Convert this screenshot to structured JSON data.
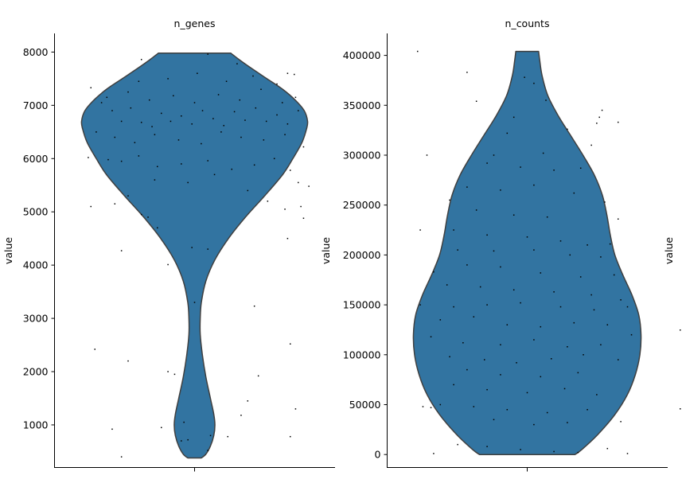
{
  "colors": {
    "violin_fill": "#3274a1",
    "violin_edge": "#3f3f3f",
    "jitter": "#000000",
    "axis": "#000000"
  },
  "chart_data": [
    {
      "type": "violin",
      "title": "n_genes",
      "ylabel": "value",
      "yticks": [
        1000,
        2000,
        3000,
        4000,
        5000,
        6000,
        7000,
        8000
      ],
      "ylim": [
        200,
        8350
      ],
      "grid": false,
      "value_range": [
        380,
        7980
      ],
      "density_profile": [
        {
          "y": 380,
          "w": 0.06
        },
        {
          "y": 450,
          "w": 0.1
        },
        {
          "y": 600,
          "w": 0.14
        },
        {
          "y": 800,
          "w": 0.17
        },
        {
          "y": 1000,
          "w": 0.18
        },
        {
          "y": 1200,
          "w": 0.17
        },
        {
          "y": 1500,
          "w": 0.14
        },
        {
          "y": 1900,
          "w": 0.1
        },
        {
          "y": 2300,
          "w": 0.07
        },
        {
          "y": 2700,
          "w": 0.05
        },
        {
          "y": 3000,
          "w": 0.05
        },
        {
          "y": 3300,
          "w": 0.06
        },
        {
          "y": 3700,
          "w": 0.1
        },
        {
          "y": 4100,
          "w": 0.18
        },
        {
          "y": 4500,
          "w": 0.3
        },
        {
          "y": 4900,
          "w": 0.45
        },
        {
          "y": 5300,
          "w": 0.62
        },
        {
          "y": 5700,
          "w": 0.78
        },
        {
          "y": 6000,
          "w": 0.87
        },
        {
          "y": 6300,
          "w": 0.95
        },
        {
          "y": 6550,
          "w": 0.99
        },
        {
          "y": 6700,
          "w": 1.0
        },
        {
          "y": 6900,
          "w": 0.97
        },
        {
          "y": 7100,
          "w": 0.89
        },
        {
          "y": 7300,
          "w": 0.78
        },
        {
          "y": 7500,
          "w": 0.64
        },
        {
          "y": 7700,
          "w": 0.5
        },
        {
          "y": 7850,
          "w": 0.4
        },
        {
          "y": 7980,
          "w": 0.32
        }
      ],
      "jitter_points": [
        [
          -0.78,
          7330
        ],
        [
          -0.7,
          7050
        ],
        [
          -0.62,
          6900
        ],
        [
          -0.55,
          6700
        ],
        [
          -0.48,
          6950
        ],
        [
          -0.4,
          6680
        ],
        [
          -0.32,
          6600
        ],
        [
          -0.25,
          6850
        ],
        [
          -0.18,
          6700
        ],
        [
          -0.1,
          6800
        ],
        [
          -0.02,
          6650
        ],
        [
          0.06,
          6900
        ],
        [
          0.14,
          6750
        ],
        [
          0.22,
          6620
        ],
        [
          0.3,
          6880
        ],
        [
          0.38,
          6720
        ],
        [
          0.46,
          6950
        ],
        [
          0.54,
          6700
        ],
        [
          0.62,
          6820
        ],
        [
          0.7,
          6650
        ],
        [
          0.78,
          6900
        ],
        [
          -0.74,
          6500
        ],
        [
          -0.6,
          6400
        ],
        [
          -0.45,
          6300
        ],
        [
          -0.3,
          6450
        ],
        [
          -0.12,
          6350
        ],
        [
          0.05,
          6280
        ],
        [
          0.2,
          6500
        ],
        [
          0.35,
          6400
        ],
        [
          0.52,
          6350
        ],
        [
          0.68,
          6450
        ],
        [
          0.82,
          6220
        ],
        [
          -0.66,
          7150
        ],
        [
          -0.5,
          7250
        ],
        [
          -0.34,
          7100
        ],
        [
          -0.16,
          7180
        ],
        [
          0.0,
          7050
        ],
        [
          0.18,
          7200
        ],
        [
          0.34,
          7100
        ],
        [
          0.5,
          7300
        ],
        [
          0.66,
          7050
        ],
        [
          0.76,
          7150
        ],
        [
          -0.42,
          7450
        ],
        [
          -0.2,
          7500
        ],
        [
          0.02,
          7600
        ],
        [
          0.24,
          7450
        ],
        [
          0.44,
          7550
        ],
        [
          0.62,
          7400
        ],
        [
          -0.4,
          7860
        ],
        [
          0.1,
          7960
        ],
        [
          0.32,
          7780
        ],
        [
          0.7,
          7600
        ],
        [
          0.75,
          7580
        ],
        [
          -0.8,
          6020
        ],
        [
          -0.65,
          5980
        ],
        [
          -0.55,
          5950
        ],
        [
          -0.42,
          6050
        ],
        [
          -0.28,
          5850
        ],
        [
          -0.1,
          5900
        ],
        [
          0.1,
          5960
        ],
        [
          0.28,
          5800
        ],
        [
          0.45,
          5880
        ],
        [
          0.6,
          6000
        ],
        [
          0.72,
          5780
        ],
        [
          0.78,
          5550
        ],
        [
          -0.3,
          5600
        ],
        [
          -0.05,
          5550
        ],
        [
          0.15,
          5700
        ],
        [
          0.4,
          5400
        ],
        [
          0.55,
          5200
        ],
        [
          -0.5,
          5300
        ],
        [
          -0.6,
          5150
        ],
        [
          -0.78,
          5100
        ],
        [
          -0.4,
          4950
        ],
        [
          -0.35,
          4900
        ],
        [
          -0.28,
          4700
        ],
        [
          0.68,
          5050
        ],
        [
          0.82,
          4880
        ],
        [
          0.86,
          5480
        ],
        [
          0.8,
          5100
        ],
        [
          0.7,
          4500
        ],
        [
          -0.55,
          4270
        ],
        [
          -0.02,
          4330
        ],
        [
          0.1,
          4300
        ],
        [
          -0.2,
          4010
        ],
        [
          0.45,
          3230
        ],
        [
          0.0,
          3300
        ],
        [
          -0.75,
          2420
        ],
        [
          -0.5,
          2200
        ],
        [
          -0.2,
          2000
        ],
        [
          -0.15,
          1950
        ],
        [
          0.48,
          1920
        ],
        [
          0.72,
          2520
        ],
        [
          0.4,
          1450
        ],
        [
          0.35,
          1180
        ],
        [
          0.76,
          1300
        ],
        [
          -0.62,
          920
        ],
        [
          -0.25,
          950
        ],
        [
          -0.08,
          1050
        ],
        [
          -0.05,
          720
        ],
        [
          -0.1,
          700
        ],
        [
          0.1,
          520
        ],
        [
          0.12,
          800
        ],
        [
          0.25,
          780
        ],
        [
          0.72,
          780
        ],
        [
          -0.55,
          400
        ]
      ]
    },
    {
      "type": "violin",
      "title": "n_counts",
      "ylabel": "value",
      "yticks": [
        0,
        50000,
        100000,
        150000,
        200000,
        250000,
        300000,
        350000,
        400000
      ],
      "ylim": [
        -13000,
        422000
      ],
      "grid": false,
      "value_range": [
        0,
        404000
      ],
      "density_profile": [
        {
          "y": 0,
          "w": 0.42
        },
        {
          "y": 5000,
          "w": 0.48
        },
        {
          "y": 20000,
          "w": 0.62
        },
        {
          "y": 40000,
          "w": 0.77
        },
        {
          "y": 60000,
          "w": 0.88
        },
        {
          "y": 80000,
          "w": 0.95
        },
        {
          "y": 100000,
          "w": 0.99
        },
        {
          "y": 120000,
          "w": 1.0
        },
        {
          "y": 140000,
          "w": 0.98
        },
        {
          "y": 160000,
          "w": 0.92
        },
        {
          "y": 180000,
          "w": 0.84
        },
        {
          "y": 200000,
          "w": 0.77
        },
        {
          "y": 220000,
          "w": 0.73
        },
        {
          "y": 240000,
          "w": 0.7
        },
        {
          "y": 260000,
          "w": 0.66
        },
        {
          "y": 280000,
          "w": 0.59
        },
        {
          "y": 300000,
          "w": 0.49
        },
        {
          "y": 320000,
          "w": 0.38
        },
        {
          "y": 340000,
          "w": 0.27
        },
        {
          "y": 360000,
          "w": 0.18
        },
        {
          "y": 380000,
          "w": 0.13
        },
        {
          "y": 395000,
          "w": 0.11
        },
        {
          "y": 404000,
          "w": 0.1
        }
      ],
      "jitter_points": [
        [
          -0.82,
          404000
        ],
        [
          -0.45,
          383000
        ],
        [
          -0.38,
          354000
        ],
        [
          -0.02,
          378000
        ],
        [
          0.05,
          372000
        ],
        [
          0.14,
          355000
        ],
        [
          0.56,
          345000
        ],
        [
          0.54,
          338000
        ],
        [
          0.68,
          333000
        ],
        [
          0.52,
          332000
        ],
        [
          0.3,
          326000
        ],
        [
          -0.1,
          338000
        ],
        [
          -0.15,
          322000
        ],
        [
          -0.25,
          300000
        ],
        [
          -0.75,
          300000
        ],
        [
          0.12,
          302000
        ],
        [
          0.48,
          310000
        ],
        [
          -0.3,
          292000
        ],
        [
          -0.05,
          288000
        ],
        [
          0.2,
          285000
        ],
        [
          0.4,
          287000
        ],
        [
          -0.45,
          268000
        ],
        [
          -0.2,
          265000
        ],
        [
          0.05,
          270000
        ],
        [
          0.35,
          262000
        ],
        [
          0.58,
          253000
        ],
        [
          -0.58,
          255000
        ],
        [
          -0.38,
          245000
        ],
        [
          -0.1,
          240000
        ],
        [
          0.15,
          238000
        ],
        [
          0.68,
          236000
        ],
        [
          -0.8,
          225000
        ],
        [
          -0.55,
          225000
        ],
        [
          -0.3,
          220000
        ],
        [
          0.0,
          218000
        ],
        [
          0.25,
          214000
        ],
        [
          0.45,
          210000
        ],
        [
          0.62,
          211000
        ],
        [
          -0.52,
          205000
        ],
        [
          -0.25,
          204000
        ],
        [
          0.05,
          205000
        ],
        [
          0.32,
          200000
        ],
        [
          0.55,
          198000
        ],
        [
          -0.7,
          183000
        ],
        [
          -0.45,
          190000
        ],
        [
          -0.2,
          188000
        ],
        [
          0.1,
          182000
        ],
        [
          0.4,
          178000
        ],
        [
          0.65,
          180000
        ],
        [
          -0.6,
          170000
        ],
        [
          -0.35,
          168000
        ],
        [
          -0.1,
          165000
        ],
        [
          0.2,
          163000
        ],
        [
          0.48,
          160000
        ],
        [
          0.7,
          155000
        ],
        [
          -0.8,
          150000
        ],
        [
          -0.55,
          148000
        ],
        [
          -0.3,
          150000
        ],
        [
          -0.05,
          152000
        ],
        [
          0.25,
          148000
        ],
        [
          0.5,
          145000
        ],
        [
          0.75,
          148000
        ],
        [
          -0.65,
          135000
        ],
        [
          -0.4,
          138000
        ],
        [
          -0.15,
          130000
        ],
        [
          0.1,
          128000
        ],
        [
          0.35,
          132000
        ],
        [
          0.6,
          130000
        ],
        [
          0.78,
          120000
        ],
        [
          -0.72,
          118000
        ],
        [
          -0.48,
          112000
        ],
        [
          -0.2,
          110000
        ],
        [
          0.05,
          115000
        ],
        [
          0.3,
          108000
        ],
        [
          0.55,
          110000
        ],
        [
          -0.58,
          98000
        ],
        [
          -0.32,
          95000
        ],
        [
          -0.08,
          92000
        ],
        [
          0.18,
          96000
        ],
        [
          0.42,
          100000
        ],
        [
          0.68,
          95000
        ],
        [
          -0.45,
          85000
        ],
        [
          -0.2,
          80000
        ],
        [
          0.1,
          78000
        ],
        [
          0.38,
          82000
        ],
        [
          -0.55,
          70000
        ],
        [
          -0.3,
          65000
        ],
        [
          0.0,
          62000
        ],
        [
          0.28,
          66000
        ],
        [
          0.52,
          60000
        ],
        [
          -0.65,
          50000
        ],
        [
          -0.4,
          48000
        ],
        [
          -0.15,
          45000
        ],
        [
          0.15,
          42000
        ],
        [
          0.45,
          45000
        ],
        [
          -0.25,
          35000
        ],
        [
          0.05,
          30000
        ],
        [
          0.3,
          32000
        ],
        [
          0.7,
          33000
        ],
        [
          -0.52,
          10000
        ],
        [
          -0.3,
          8000
        ],
        [
          -0.05,
          5000
        ],
        [
          0.2,
          3000
        ],
        [
          0.38,
          2000
        ],
        [
          -0.7,
          1000
        ],
        [
          0.6,
          6000
        ],
        [
          0.75,
          1000
        ],
        [
          -0.78,
          48000
        ],
        [
          -0.72,
          47000
        ]
      ]
    }
  ]
}
